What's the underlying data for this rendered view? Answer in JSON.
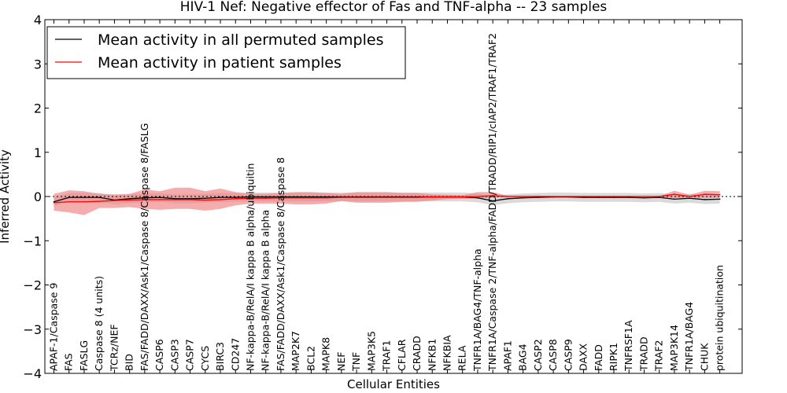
{
  "chart_data": {
    "type": "line",
    "title": "HIV-1 Nef: Negative effector of Fas and TNF-alpha -- 23 samples",
    "xlabel": "Cellular Entities",
    "ylabel": "Inferred Activity",
    "ylim": [
      -4,
      4
    ],
    "yticks": [
      -4,
      -3,
      -2,
      -1,
      0,
      1,
      2,
      3,
      4
    ],
    "ytick_labels": [
      "−4",
      "−3",
      "−2",
      "−1",
      "0",
      "1",
      "2",
      "3",
      "4"
    ],
    "baseline": 0,
    "legend_position": "top-left",
    "categories": [
      "APAF-1/Caspase 9",
      "FAS",
      "FASLG",
      "Caspase 8 (4 units)",
      "TCRz/NEF",
      "BID",
      "FAS/FADD/DAXX/Ask1/Caspase 8/Caspase 8/FASLG",
      "CASP6",
      "CASP3",
      "CASP7",
      "CYCS",
      "BIRC3",
      "CD247",
      "NF-kappa-B/RelA/I kappa B alpha/ubiquitin",
      "NF-kappa-B/RelA/I kappa B alpha",
      "FAS/FADD/DAXX/Ask1/Caspase 8/Caspase 8",
      "MAP2K7",
      "BCL2",
      "MAPK8",
      "NEF",
      "TNF",
      "MAP3K5",
      "TRAF1",
      "CFLAR",
      "CRADD",
      "NFKB1",
      "NFKBIA",
      "RELA",
      "TNFR1A/BAG4/TNF-alpha",
      "TNFR1A/Caspase 2/TNF-alpha/FADD/TRADD/RIP1/cIAP2/TRAF1/TRAF2",
      "APAF1",
      "BAG4",
      "CASP2",
      "CASP8",
      "CASP9",
      "DAXX",
      "FADD",
      "RIPK1",
      "TNFRSF1A",
      "TRADD",
      "TRAF2",
      "MAP3K14",
      "TNFR1A/BAG4",
      "CHUK",
      "protein ubiquitination"
    ],
    "series": [
      {
        "name": "Mean activity in all permuted samples",
        "color": "#000000",
        "band_color": "#bbbbbb",
        "values": [
          -0.12,
          -0.02,
          -0.02,
          -0.02,
          -0.08,
          -0.05,
          -0.03,
          -0.02,
          -0.05,
          -0.05,
          -0.04,
          -0.02,
          -0.02,
          -0.01,
          -0.01,
          -0.01,
          -0.01,
          -0.01,
          -0.01,
          -0.01,
          -0.01,
          -0.01,
          -0.01,
          -0.01,
          -0.01,
          -0.01,
          -0.01,
          -0.01,
          -0.03,
          -0.1,
          -0.05,
          -0.03,
          -0.02,
          -0.01,
          -0.01,
          -0.02,
          -0.02,
          -0.02,
          -0.02,
          -0.03,
          -0.02,
          -0.06,
          -0.04,
          -0.07,
          -0.06
        ],
        "lower": [
          -0.22,
          -0.12,
          -0.12,
          -0.12,
          -0.18,
          -0.15,
          -0.13,
          -0.12,
          -0.15,
          -0.15,
          -0.14,
          -0.12,
          -0.12,
          -0.11,
          -0.11,
          -0.11,
          -0.11,
          -0.11,
          -0.11,
          -0.11,
          -0.11,
          -0.11,
          -0.11,
          -0.11,
          -0.11,
          -0.11,
          -0.11,
          -0.11,
          -0.13,
          -0.2,
          -0.15,
          -0.13,
          -0.12,
          -0.11,
          -0.11,
          -0.12,
          -0.12,
          -0.12,
          -0.12,
          -0.13,
          -0.12,
          -0.16,
          -0.14,
          -0.17,
          -0.16
        ],
        "upper": [
          -0.02,
          0.08,
          0.08,
          0.08,
          0.02,
          0.05,
          0.07,
          0.08,
          0.05,
          0.05,
          0.06,
          0.08,
          0.08,
          0.09,
          0.09,
          0.09,
          0.09,
          0.09,
          0.09,
          0.09,
          0.09,
          0.09,
          0.09,
          0.09,
          0.09,
          0.09,
          0.09,
          0.09,
          0.07,
          0.0,
          0.05,
          0.07,
          0.08,
          0.09,
          0.09,
          0.08,
          0.08,
          0.08,
          0.08,
          0.07,
          0.08,
          0.04,
          0.06,
          0.03,
          0.04
        ]
      },
      {
        "name": "Mean activity in patient samples",
        "color": "#ff0000",
        "band_color": "#f08080",
        "values": [
          -0.14,
          -0.12,
          -0.12,
          -0.11,
          -0.09,
          -0.08,
          -0.07,
          -0.07,
          -0.07,
          -0.07,
          -0.08,
          -0.07,
          -0.05,
          -0.04,
          -0.04,
          -0.03,
          -0.03,
          -0.03,
          -0.03,
          -0.02,
          -0.02,
          -0.02,
          -0.02,
          -0.02,
          -0.02,
          -0.01,
          -0.01,
          -0.01,
          0.0,
          0.02,
          0.0,
          0.0,
          0.0,
          0.0,
          0.0,
          0.0,
          0.0,
          0.0,
          0.0,
          0.0,
          0.0,
          0.05,
          0.0,
          0.05,
          0.04
        ],
        "lower": [
          -0.32,
          -0.36,
          -0.42,
          -0.26,
          -0.26,
          -0.24,
          -0.28,
          -0.3,
          -0.28,
          -0.28,
          -0.32,
          -0.28,
          -0.2,
          -0.16,
          -0.16,
          -0.16,
          -0.18,
          -0.18,
          -0.16,
          -0.1,
          -0.14,
          -0.14,
          -0.14,
          -0.12,
          -0.12,
          -0.09,
          -0.06,
          -0.05,
          -0.04,
          -0.03,
          -0.02,
          -0.02,
          -0.02,
          -0.01,
          -0.01,
          -0.01,
          -0.01,
          -0.01,
          -0.01,
          -0.01,
          -0.01,
          -0.03,
          -0.03,
          -0.03,
          -0.03
        ],
        "upper": [
          0.06,
          0.14,
          0.12,
          0.06,
          0.05,
          0.06,
          0.16,
          0.12,
          0.2,
          0.2,
          0.12,
          0.18,
          0.1,
          0.06,
          0.06,
          0.08,
          0.1,
          0.1,
          0.08,
          0.06,
          0.1,
          0.1,
          0.1,
          0.08,
          0.08,
          0.05,
          0.04,
          0.03,
          0.1,
          0.1,
          0.02,
          0.02,
          0.02,
          0.01,
          0.01,
          0.01,
          0.01,
          0.01,
          0.01,
          0.01,
          0.01,
          0.13,
          0.04,
          0.13,
          0.12
        ]
      }
    ]
  }
}
